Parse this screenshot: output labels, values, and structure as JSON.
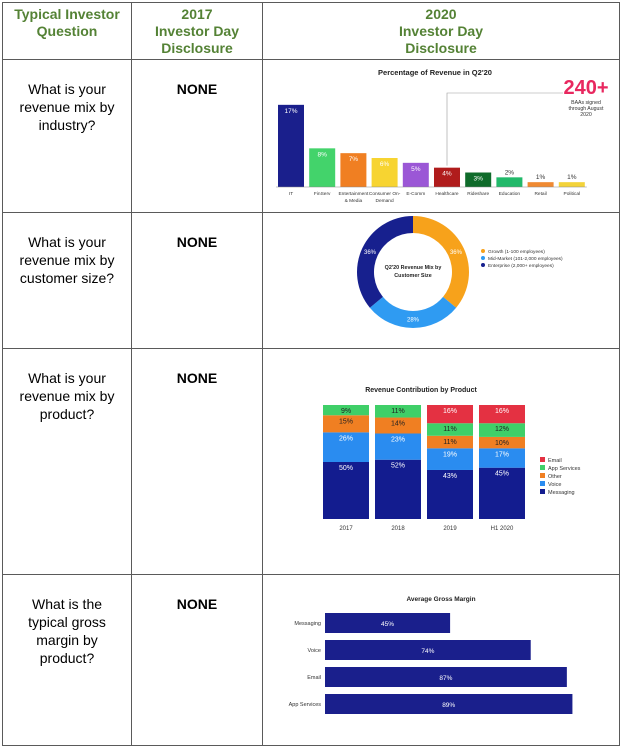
{
  "header": {
    "col1": [
      "Typical Investor",
      "Question"
    ],
    "col2": [
      "2017",
      "Investor Day",
      "Disclosure"
    ],
    "col3": [
      "2020",
      "Investor Day",
      "Disclosure"
    ]
  },
  "rows": [
    {
      "question": "What is your revenue mix by industry?",
      "disclosure_2017": "NONE"
    },
    {
      "question": "What is your revenue mix by customer size?",
      "disclosure_2017": "NONE"
    },
    {
      "question": "What is your revenue mix by product?",
      "disclosure_2017": "NONE"
    },
    {
      "question": "What is the typical gross margin by product?",
      "disclosure_2017": "NONE"
    }
  ],
  "callout": {
    "value": "240+",
    "note": [
      "BAAs signed",
      "through August",
      "2020"
    ]
  },
  "donut_center": [
    "Q2'20 Revenue Mix by",
    "Customer Size"
  ],
  "chart_data": [
    {
      "type": "bar",
      "title": "Percentage of Revenue in Q2'20",
      "categories": [
        [
          "IT"
        ],
        [
          "FinServ"
        ],
        [
          "Entertainment",
          "& Media"
        ],
        [
          "Consumer On-",
          "Demand"
        ],
        [
          "E-Comm"
        ],
        [
          "Healthcare"
        ],
        [
          "Rideshare"
        ],
        [
          "Education"
        ],
        [
          "Retail"
        ],
        [
          "Political"
        ]
      ],
      "values": [
        17,
        8,
        7,
        6,
        5,
        4,
        3,
        2,
        1,
        1
      ],
      "labels": [
        "17%",
        "8%",
        "7%",
        "6%",
        "5%",
        "4%",
        "3%",
        "2%",
        "1%",
        "1%"
      ],
      "colors": [
        "#1a1f8c",
        "#43d36b",
        "#f07f22",
        "#f7d431",
        "#9b57d6",
        "#b01c1c",
        "#0f6b2a",
        "#22b96a",
        "#f08a32",
        "#f3d33a"
      ],
      "ylim": [
        0,
        18
      ]
    },
    {
      "type": "pie",
      "title": "Q2'20 Revenue Mix by Customer Size",
      "slices": [
        {
          "name": "Growth (1-100 employees)",
          "value": 36,
          "label": "36%",
          "color": "#f7a21b"
        },
        {
          "name": "Mid-Market (101-2,000 employees)",
          "value": 28,
          "label": "28%",
          "color": "#2f9bf2"
        },
        {
          "name": "Enterprise (2,000+ employees)",
          "value": 36,
          "label": "36%",
          "color": "#17208e"
        }
      ]
    },
    {
      "type": "bar",
      "title": "Revenue Contribution by Product",
      "stacked": true,
      "categories": [
        "2017",
        "2018",
        "2019",
        "H1 2020"
      ],
      "series": [
        {
          "name": "Messaging",
          "color": "#131c8f",
          "values": [
            50,
            52,
            43,
            45
          ],
          "labels": [
            "50%",
            "52%",
            "43%",
            "45%"
          ]
        },
        {
          "name": "Voice",
          "color": "#2a8cf0",
          "values": [
            26,
            23,
            19,
            17
          ],
          "labels": [
            "26%",
            "23%",
            "19%",
            "17%"
          ]
        },
        {
          "name": "Other",
          "color": "#f07f22",
          "values": [
            15,
            14,
            11,
            10
          ],
          "labels": [
            "15%",
            "14%",
            "11%",
            "10%"
          ]
        },
        {
          "name": "App Services",
          "color": "#3fcf68",
          "values": [
            9,
            11,
            11,
            12
          ],
          "labels": [
            "9%",
            "11%",
            "11%",
            "12%"
          ]
        },
        {
          "name": "Email",
          "color": "#e43142",
          "values": [
            0,
            0,
            16,
            16
          ],
          "labels": [
            "",
            "",
            "16%",
            "16%"
          ]
        }
      ],
      "legend_order": [
        "Email",
        "App Services",
        "Other",
        "Voice",
        "Messaging"
      ],
      "legend": "right"
    },
    {
      "type": "bar",
      "orientation": "horizontal",
      "title": "Average Gross Margin",
      "categories": [
        "Messaging",
        "Voice",
        "Email",
        "App Services"
      ],
      "values": [
        45,
        74,
        87,
        89
      ],
      "labels": [
        "45%",
        "74%",
        "87%",
        "89%"
      ],
      "color": "#1a1f8c",
      "xlim": [
        0,
        100
      ]
    }
  ]
}
